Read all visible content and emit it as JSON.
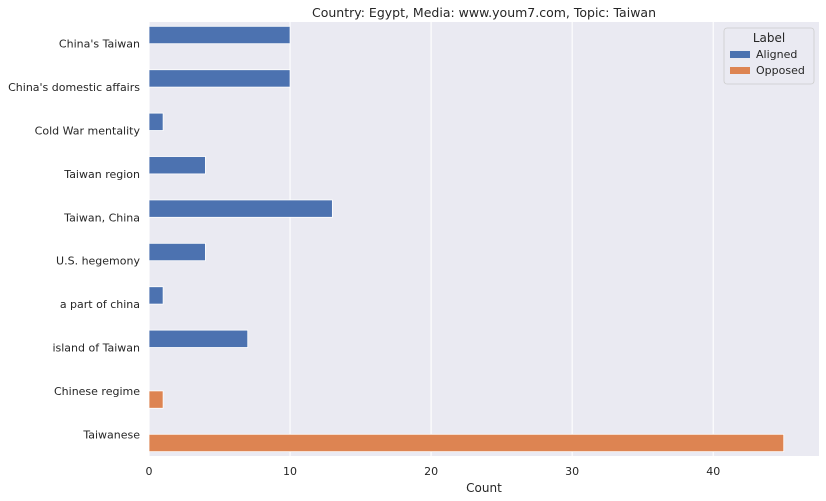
{
  "chart_data": {
    "type": "bar",
    "orientation": "horizontal",
    "title": "Country: Egypt, Media: www.youm7.com, Topic: Taiwan",
    "xlabel": "Count",
    "ylabel": "",
    "xlim": [
      0,
      47.5
    ],
    "xticks": [
      0,
      10,
      20,
      30,
      40
    ],
    "grid": true,
    "legend": {
      "title": "Label",
      "position": "top-right",
      "entries": [
        "Aligned",
        "Opposed"
      ]
    },
    "categories": [
      "China's Taiwan",
      "China's domestic affairs",
      "Cold War mentality",
      "Taiwan region",
      "Taiwan, China",
      "U.S. hegemony",
      "a part of china",
      "island of Taiwan",
      "Chinese regime",
      "Taiwanese"
    ],
    "series": [
      {
        "name": "Aligned",
        "color": "#4c72b0",
        "values": [
          10,
          10,
          1,
          4,
          13,
          4,
          1,
          7,
          null,
          null
        ]
      },
      {
        "name": "Opposed",
        "color": "#dd8452",
        "values": [
          null,
          null,
          null,
          null,
          null,
          null,
          null,
          null,
          1,
          45
        ]
      }
    ]
  }
}
